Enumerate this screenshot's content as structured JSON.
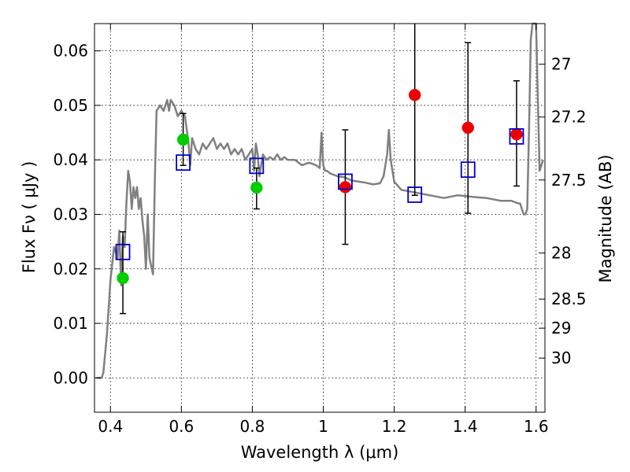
{
  "chart_data": {
    "type": "scatter",
    "title": "",
    "xlabel": "Wavelength  λ (μm)",
    "ylabel": "Flux  Fν  ( μJy )",
    "y2label": "Magnitude (AB)",
    "xlim": [
      0.355,
      1.625
    ],
    "ylim": [
      -0.0063,
      0.065
    ],
    "grid": true,
    "x_ticks": [
      0.4,
      0.6,
      0.8,
      1.0,
      1.2,
      1.4,
      1.6
    ],
    "x_tick_labels": [
      "0.4",
      "0.6",
      "0.8",
      "1",
      "1.2",
      "1.4",
      "1.6"
    ],
    "y_ticks": [
      0.0,
      0.01,
      0.02,
      0.03,
      0.04,
      0.05,
      0.06
    ],
    "y_tick_labels": [
      "0.00",
      "0.01",
      "0.02",
      "0.03",
      "0.04",
      "0.05",
      "0.06"
    ],
    "y2_ticks": [
      27,
      27.2,
      27.5,
      28,
      28.5,
      29,
      30
    ],
    "y2_tick_labels": [
      "27",
      "27.2",
      "27.5",
      "28",
      "28.5",
      "29",
      "30"
    ],
    "colors": {
      "spectrum": "#808080",
      "green_points": "#00cc00",
      "red_points": "#ee0000",
      "model_squares": "#0000cc",
      "errorbars": "#000000"
    },
    "spectrum": {
      "name": "",
      "x": [
        0.36,
        0.375,
        0.38,
        0.39,
        0.4,
        0.41,
        0.42,
        0.425,
        0.43,
        0.435,
        0.44,
        0.445,
        0.45,
        0.455,
        0.46,
        0.465,
        0.47,
        0.475,
        0.48,
        0.485,
        0.49,
        0.495,
        0.5,
        0.505,
        0.51,
        0.52,
        0.525,
        0.53,
        0.54,
        0.55,
        0.56,
        0.565,
        0.57,
        0.58,
        0.59,
        0.6,
        0.61,
        0.62,
        0.625,
        0.63,
        0.64,
        0.65,
        0.66,
        0.67,
        0.68,
        0.69,
        0.7,
        0.71,
        0.72,
        0.73,
        0.74,
        0.75,
        0.76,
        0.77,
        0.78,
        0.79,
        0.8,
        0.805,
        0.81,
        0.815,
        0.82,
        0.83,
        0.84,
        0.85,
        0.86,
        0.87,
        0.88,
        0.89,
        0.9,
        0.92,
        0.94,
        0.96,
        0.98,
        0.99,
        0.995,
        1.0,
        1.005,
        1.01,
        1.02,
        1.04,
        1.06,
        1.08,
        1.1,
        1.12,
        1.14,
        1.16,
        1.17,
        1.18,
        1.185,
        1.19,
        1.2,
        1.22,
        1.26,
        1.3,
        1.34,
        1.38,
        1.42,
        1.46,
        1.5,
        1.53,
        1.55,
        1.555,
        1.56,
        1.565,
        1.57,
        1.575,
        1.58,
        1.585,
        1.59,
        1.595,
        1.6,
        1.61,
        1.62
      ],
      "y": [
        0.0,
        0.0,
        0.001,
        0.008,
        0.018,
        0.024,
        0.022,
        0.027,
        0.017,
        0.026,
        0.024,
        0.032,
        0.038,
        0.036,
        0.031,
        0.035,
        0.033,
        0.035,
        0.031,
        0.033,
        0.029,
        0.026,
        0.02,
        0.03,
        0.022,
        0.019,
        0.036,
        0.049,
        0.05,
        0.049,
        0.051,
        0.049,
        0.051,
        0.05,
        0.048,
        0.049,
        0.048,
        0.043,
        0.039,
        0.044,
        0.042,
        0.041,
        0.043,
        0.042,
        0.043,
        0.044,
        0.042,
        0.043,
        0.042,
        0.043,
        0.041,
        0.042,
        0.041,
        0.042,
        0.04,
        0.041,
        0.042,
        0.038,
        0.043,
        0.041,
        0.037,
        0.041,
        0.04,
        0.0405,
        0.04,
        0.041,
        0.04,
        0.0405,
        0.04,
        0.04,
        0.039,
        0.0395,
        0.039,
        0.0385,
        0.045,
        0.039,
        0.038,
        0.038,
        0.0375,
        0.037,
        0.0368,
        0.0362,
        0.036,
        0.0358,
        0.0355,
        0.0357,
        0.037,
        0.041,
        0.0455,
        0.04,
        0.036,
        0.0345,
        0.034,
        0.0335,
        0.033,
        0.0335,
        0.0332,
        0.033,
        0.0325,
        0.0325,
        0.032,
        0.032,
        0.031,
        0.03,
        0.03,
        0.031,
        0.045,
        0.062,
        0.065,
        0.065,
        0.065,
        0.038,
        0.04
      ]
    },
    "series": [
      {
        "name": "",
        "marker": "circle",
        "color": "#00cc00",
        "x": [
          0.435,
          0.605,
          0.812
        ],
        "y": [
          0.0183,
          0.0437,
          0.0349
        ],
        "yerr_low": [
          0.0118,
          0.039,
          0.031
        ],
        "yerr_high": [
          0.0268,
          0.0485,
          0.0385
        ]
      },
      {
        "name": "",
        "marker": "circle",
        "color": "#ee0000",
        "x": [
          1.062,
          1.258,
          1.408,
          1.545
        ],
        "y": [
          0.035,
          0.0519,
          0.0459,
          0.0447
        ],
        "yerr_low": [
          0.0245,
          0.0335,
          0.0302,
          0.0352
        ],
        "yerr_high": [
          0.0455,
          0.0665,
          0.0615,
          0.0545
        ]
      },
      {
        "name": "",
        "marker": "open-square",
        "color": "#0000cc",
        "x": [
          0.435,
          0.605,
          0.812,
          1.062,
          1.258,
          1.408,
          1.545
        ],
        "y": [
          0.0231,
          0.0395,
          0.0389,
          0.036,
          0.0336,
          0.0382,
          0.0443
        ]
      }
    ]
  }
}
